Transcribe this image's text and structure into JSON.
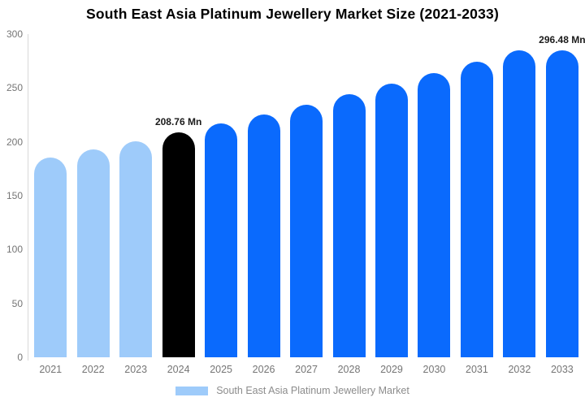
{
  "chart_data": {
    "type": "bar",
    "title": "South East Asia Platinum Jewellery Market Size (2021-2033)",
    "unit": "Mn",
    "categories": [
      "2021",
      "2022",
      "2023",
      "2024",
      "2025",
      "2026",
      "2027",
      "2028",
      "2029",
      "2030",
      "2031",
      "2032",
      "2033"
    ],
    "values": [
      185.72,
      193.1,
      200.78,
      208.76,
      217.06,
      225.69,
      234.66,
      243.98,
      253.68,
      263.77,
      274.25,
      285.15,
      296.48
    ],
    "bar_colors": [
      "#9ecbfa",
      "#9ecbfa",
      "#9ecbfa",
      "#000000",
      "#0a6afd",
      "#0a6afd",
      "#0a6afd",
      "#0a6afd",
      "#0a6afd",
      "#0a6afd",
      "#0a6afd",
      "#0a6afd",
      "#0a6afd"
    ],
    "data_labels": [
      "",
      "",
      "",
      "208.76 Mn",
      "",
      "",
      "",
      "",
      "",
      "",
      "",
      "",
      "296.48 Mn"
    ],
    "ylim": [
      0,
      300
    ],
    "yticks": [
      0,
      50,
      100,
      150,
      200,
      250,
      300
    ],
    "grid": false,
    "legend_position": "bottom",
    "legend": {
      "label": "South East Asia Platinum Jewellery Market",
      "swatch_color": "#9ecbfa"
    },
    "colors": {
      "historical": "#9ecbfa",
      "base_year": "#000000",
      "forecast": "#0a6afd",
      "axis_text": "#757575",
      "legend_text": "#8c8c8c",
      "title_text": "#000000",
      "axis_line": "#d9d9d9"
    }
  }
}
